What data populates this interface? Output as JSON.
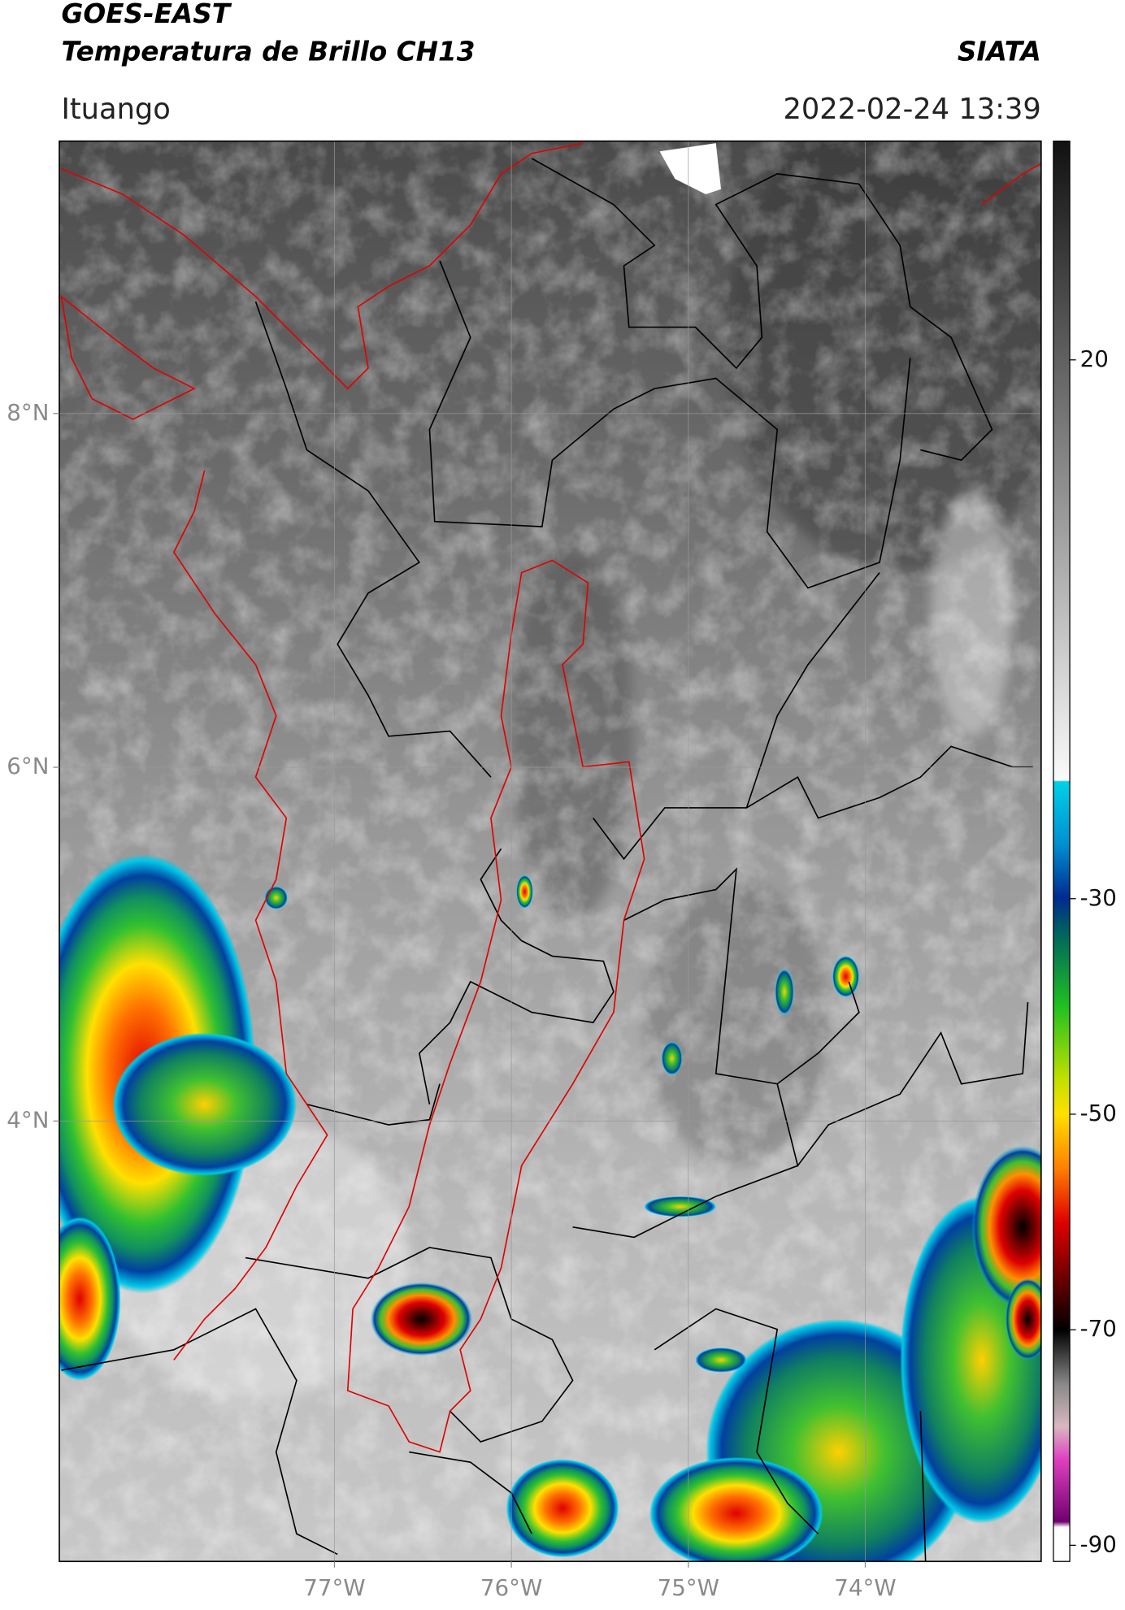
{
  "header": {
    "title": "GOES-EAST",
    "subtitle": "Temperatura de Brillo CH13",
    "brand": "SIATA",
    "location": "Ituango",
    "datetime": "2022-02-24 13:39"
  },
  "map": {
    "xlim": [
      -78.555,
      -73.006
    ],
    "ylim": [
      1.51,
      9.54
    ],
    "xticks": [
      {
        "value": -77,
        "label": "77°W"
      },
      {
        "value": -76,
        "label": "76°W"
      },
      {
        "value": -75,
        "label": "75°W"
      },
      {
        "value": -74,
        "label": "74°W"
      }
    ],
    "yticks": [
      {
        "value": 8,
        "label": "8°N"
      },
      {
        "value": 6,
        "label": "6°N"
      },
      {
        "value": 4,
        "label": "4°N"
      }
    ],
    "grid": true
  },
  "colorbar": {
    "lim": [
      -91.5,
      40.3
    ],
    "ticks": [
      20,
      -30,
      -50,
      -70,
      -90
    ]
  }
}
